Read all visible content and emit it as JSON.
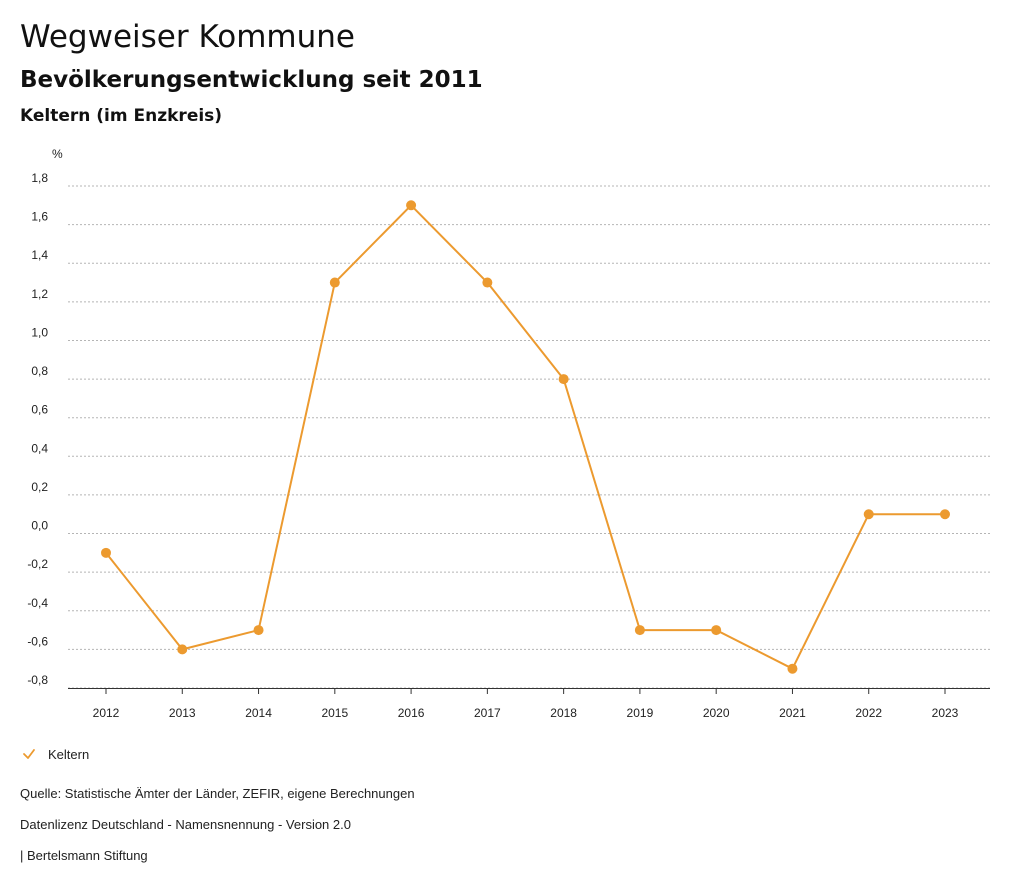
{
  "header": {
    "title": "Wegweiser Kommune",
    "subtitle": "Bevölkerungsentwicklung seit 2011",
    "region": "Keltern (im Enzkreis)"
  },
  "legend": {
    "label": "Keltern",
    "icon": "check-icon"
  },
  "footer": {
    "source": "Quelle: Statistische Ämter der Länder, ZEFIR, eigene Berechnungen",
    "license": "Datenlizenz Deutschland - Namensnennung - Version 2.0",
    "publisher": "| Bertelsmann Stiftung"
  },
  "colors": {
    "series": "#ec9a2f",
    "grid": "#b5b5b5"
  },
  "chart_data": {
    "type": "line",
    "title": "Bevölkerungsentwicklung seit 2011",
    "ylabel": "%",
    "xlabel": "",
    "ylim": [
      -0.8,
      1.8
    ],
    "yticks": [
      1.8,
      1.6,
      1.4,
      1.2,
      1.0,
      0.8,
      0.6,
      0.4,
      0.2,
      0.0,
      -0.2,
      -0.4,
      -0.6,
      -0.8
    ],
    "ytick_labels": [
      "1,8",
      "1,6",
      "1,4",
      "1,2",
      "1,0",
      "0,8",
      "0,6",
      "0,4",
      "0,2",
      "0,0",
      "-0,2",
      "-0,4",
      "-0,6",
      "-0,8"
    ],
    "categories": [
      "2012",
      "2013",
      "2014",
      "2015",
      "2016",
      "2017",
      "2018",
      "2019",
      "2020",
      "2021",
      "2022",
      "2023"
    ],
    "series": [
      {
        "name": "Keltern",
        "values": [
          -0.1,
          -0.6,
          -0.5,
          1.3,
          1.7,
          1.3,
          0.8,
          -0.5,
          -0.5,
          -0.7,
          0.1,
          0.1
        ]
      }
    ],
    "grid": true,
    "legend_position": "bottom-left"
  }
}
